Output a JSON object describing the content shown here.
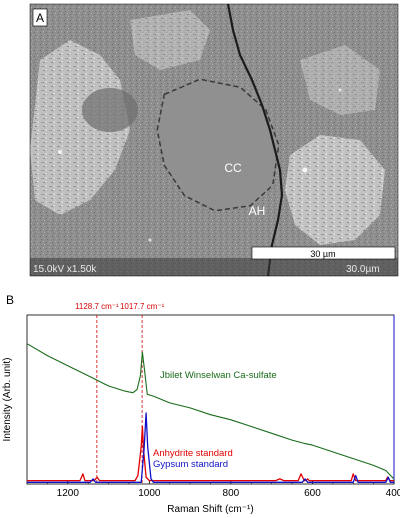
{
  "panel_a": {
    "letter": "A",
    "labels": {
      "cc": "CC",
      "ah": "AH"
    },
    "scale_bar": "30 µm",
    "sem_info_left": "15.0kV x1.50k",
    "sem_info_right": "30.0µm"
  },
  "panel_b": {
    "letter": "B",
    "peak_markers": [
      {
        "label": "1128.7 cm⁻¹",
        "x": 1128.7
      },
      {
        "label": "1017.7 cm⁻¹",
        "x": 1017.7
      }
    ]
  },
  "chart_data": {
    "type": "line",
    "xlabel": "Raman Shift (cm⁻¹)",
    "ylabel": "Intensity (Arb. unit)",
    "xlim": [
      1300,
      400
    ],
    "x_ticks": [
      1200,
      1000,
      800,
      600,
      400
    ],
    "ylim": [
      0,
      100
    ],
    "grid": false,
    "series": [
      {
        "name": "Jbilet Winselwan Ca-sulfate",
        "color": "#1a6b1a",
        "points": [
          [
            1300,
            83
          ],
          [
            1250,
            76
          ],
          [
            1200,
            70
          ],
          [
            1150,
            64
          ],
          [
            1100,
            58
          ],
          [
            1060,
            55
          ],
          [
            1040,
            54
          ],
          [
            1030,
            56
          ],
          [
            1022,
            64
          ],
          [
            1017,
            78
          ],
          [
            1012,
            68
          ],
          [
            1005,
            53
          ],
          [
            990,
            52
          ],
          [
            950,
            48
          ],
          [
            900,
            45
          ],
          [
            850,
            41
          ],
          [
            800,
            38
          ],
          [
            750,
            34
          ],
          [
            700,
            30
          ],
          [
            650,
            26
          ],
          [
            620,
            24
          ],
          [
            600,
            23
          ],
          [
            550,
            19
          ],
          [
            500,
            15
          ],
          [
            450,
            11
          ],
          [
            420,
            8
          ],
          [
            408,
            5
          ],
          [
            400,
            3
          ]
        ]
      },
      {
        "name": "Anhydrite standard",
        "color": "#e00000",
        "points": [
          [
            1300,
            2
          ],
          [
            1170,
            2
          ],
          [
            1163,
            6
          ],
          [
            1158,
            2
          ],
          [
            1135,
            2
          ],
          [
            1128,
            4
          ],
          [
            1122,
            2
          ],
          [
            1035,
            2
          ],
          [
            1028,
            5
          ],
          [
            1020,
            22
          ],
          [
            1017,
            34
          ],
          [
            1014,
            20
          ],
          [
            1008,
            4
          ],
          [
            1000,
            2
          ],
          [
            690,
            2
          ],
          [
            680,
            3
          ],
          [
            670,
            2
          ],
          [
            635,
            2
          ],
          [
            628,
            6
          ],
          [
            620,
            2
          ],
          [
            615,
            2
          ],
          [
            612,
            3
          ],
          [
            608,
            2
          ],
          [
            505,
            2
          ],
          [
            500,
            6
          ],
          [
            494,
            2
          ],
          [
            420,
            2
          ],
          [
            416,
            4
          ],
          [
            410,
            2
          ],
          [
            400,
            2
          ]
        ]
      },
      {
        "name": "Gypsum standard",
        "color": "#1010c8",
        "points": [
          [
            1300,
            1
          ],
          [
            1145,
            1
          ],
          [
            1138,
            3
          ],
          [
            1132,
            1
          ],
          [
            1020,
            1
          ],
          [
            1013,
            20
          ],
          [
            1008,
            42
          ],
          [
            1004,
            22
          ],
          [
            996,
            3
          ],
          [
            990,
            1
          ],
          [
            625,
            1
          ],
          [
            618,
            3
          ],
          [
            612,
            1
          ],
          [
            500,
            1
          ],
          [
            494,
            5
          ],
          [
            488,
            1
          ],
          [
            420,
            1
          ],
          [
            414,
            4
          ],
          [
            409,
            1
          ],
          [
            400,
            1
          ]
        ]
      }
    ]
  }
}
